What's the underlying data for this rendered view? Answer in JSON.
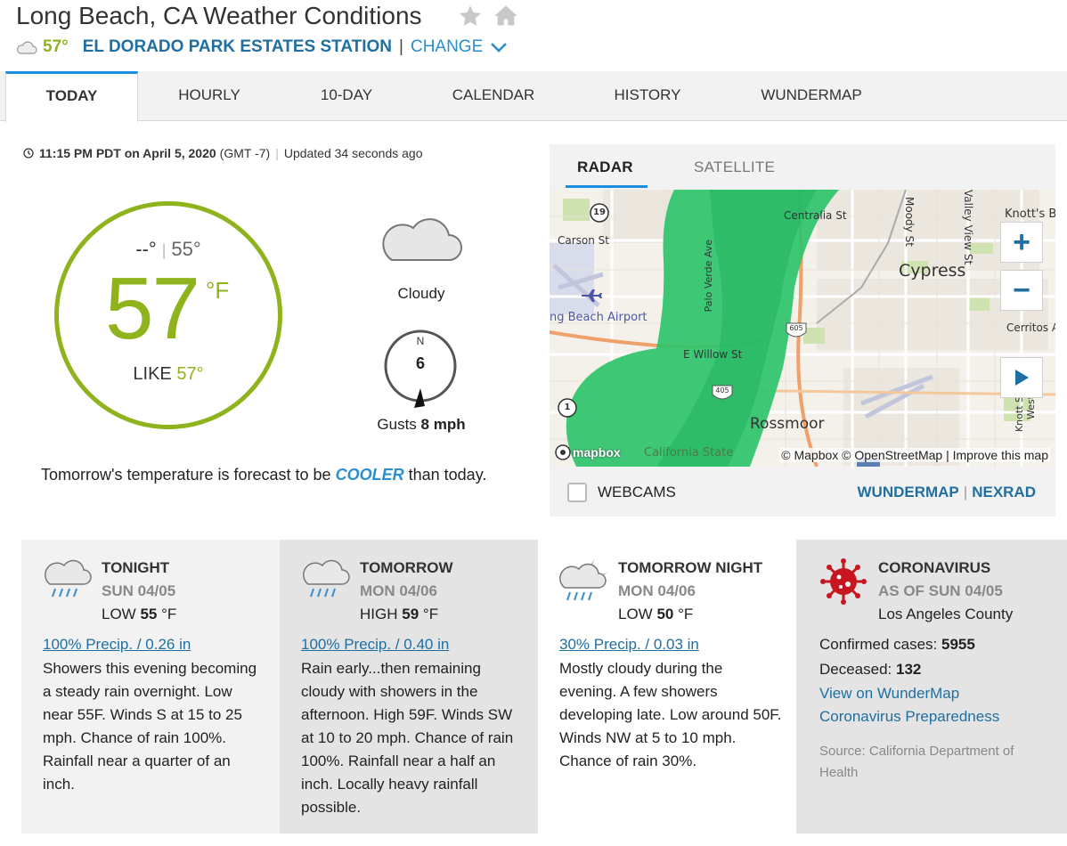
{
  "header": {
    "title": "Long Beach, CA Weather Conditions",
    "favorite_icon": "star-icon",
    "home_icon": "home-icon",
    "station_temp": "57°",
    "station_name": "EL DORADO PARK ESTATES STATION",
    "separator": "|",
    "change_label": "CHANGE"
  },
  "tabs": [
    {
      "label": "TODAY",
      "active": true
    },
    {
      "label": "HOURLY"
    },
    {
      "label": "10-DAY"
    },
    {
      "label": "CALENDAR"
    },
    {
      "label": "HISTORY"
    },
    {
      "label": "WUNDERMAP"
    }
  ],
  "current": {
    "time": "11:15 PM PDT on April 5, 2020",
    "gmt": "(GMT -7)",
    "updated": "Updated 34 seconds ago",
    "high": "--°",
    "low": "55°",
    "temp": "57",
    "unit": "°F",
    "feels_label": "LIKE",
    "feels_value": "57°",
    "condition": "Cloudy",
    "wind_dir": "N",
    "wind_speed": "6",
    "gusts_label": "Gusts",
    "gusts_value": "8 mph",
    "tomorrow_pre": "Tomorrow's temperature is forecast to be",
    "tomorrow_word": "COOLER",
    "tomorrow_post": "than today."
  },
  "colors": {
    "temp_green": "#8fb31d",
    "link_blue": "#1f6fa1",
    "accent_blue": "#1c8ee0",
    "radar_green": "#2ec46b"
  },
  "radar": {
    "tab_radar": "RADAR",
    "tab_satellite": "SATELLITE",
    "labels": {
      "carson": "Carson St",
      "centralia": "Centralia St",
      "moody": "Moody St",
      "valley_view": "Valley View St",
      "knotts": "Knott's B",
      "cypress": "Cypress",
      "airport": "ng Beach Airport",
      "palo_verde": "Palo Verde Ave",
      "willow": "E Willow St",
      "cerritos": "Cerritos A",
      "rossmoor": "Rossmoor",
      "calstate": "California State",
      "western": "Western Av",
      "knott_st": "Knott S",
      "route19": "19",
      "route1": "1",
      "i405": "405",
      "i605": "605"
    },
    "mapbox": "mapbox",
    "attribution": "© Mapbox © OpenStreetMap | Improve this map",
    "zoom_in": "+",
    "zoom_out": "−",
    "webcams_label": "WEBCAMS",
    "link_wundermap": "WUNDERMAP",
    "link_separator": "|",
    "link_nexrad": "NEXRAD"
  },
  "forecast": [
    {
      "title": "TONIGHT",
      "date": "SUN 04/05",
      "temp_label": "LOW",
      "temp_value": "55",
      "temp_unit": "°F",
      "precip": "100% Precip. / 0.26 in",
      "text": "Showers this evening becoming a steady rain overnight. Low near 55F. Winds S at 15 to 25 mph. Chance of rain 100%. Rainfall near a quarter of an inch.",
      "icon": "rain-cloud-icon"
    },
    {
      "title": "TOMORROW",
      "date": "MON 04/06",
      "temp_label": "HIGH",
      "temp_value": "59",
      "temp_unit": "°F",
      "precip": "100% Precip. / 0.40 in",
      "text": "Rain early...then remaining cloudy with showers in the afternoon. High 59F. Winds SW at 10 to 20 mph. Chance of rain 100%. Rainfall near a half an inch. Locally heavy rainfall possible.",
      "icon": "rain-cloud-icon"
    },
    {
      "title": "TOMORROW NIGHT",
      "date": "MON 04/06",
      "temp_label": "LOW",
      "temp_value": "50",
      "temp_unit": "°F",
      "precip": "30% Precip. / 0.03 in",
      "text": "Mostly cloudy during the evening. A few showers developing late. Low around 50F. Winds NW at 5 to 10 mph. Chance of rain 30%.",
      "icon": "night-rain-cloud-icon"
    }
  ],
  "covid": {
    "title": "CORONAVIRUS",
    "date": "AS OF SUN 04/05",
    "county": "Los Angeles County",
    "confirmed_label": "Confirmed cases:",
    "confirmed_value": "5955",
    "deceased_label": "Deceased:",
    "deceased_value": "132",
    "link_map": "View on WunderMap",
    "link_prep": "Coronavirus Preparedness",
    "source": "Source: California Department of Health",
    "icon": "virus-icon"
  }
}
